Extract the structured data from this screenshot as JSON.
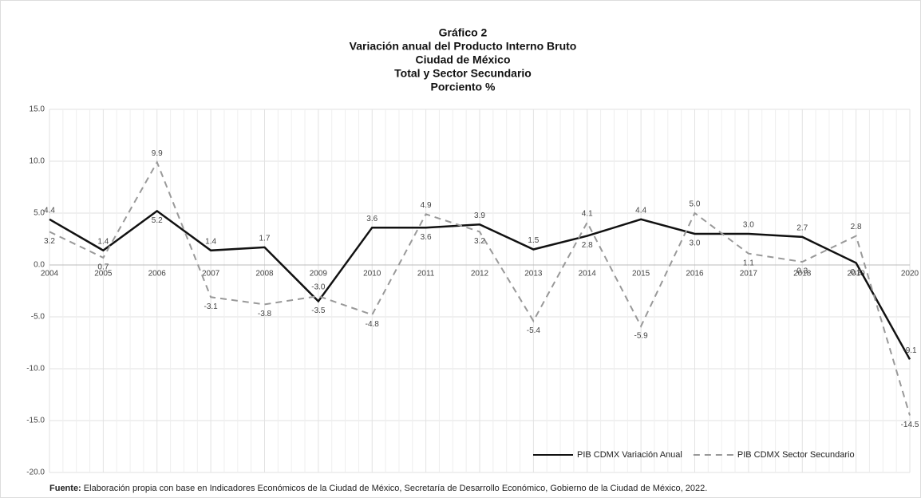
{
  "chart_data": {
    "type": "line",
    "title": [
      "Gráfico 2",
      "Variación anual del Producto Interno Bruto",
      "Ciudad de México",
      "Total y Sector Secundario",
      "Porciento %"
    ],
    "categories": [
      "2004",
      "2005",
      "2006",
      "2007",
      "2008",
      "2009",
      "2010",
      "2011",
      "2012",
      "2013",
      "2014",
      "2015",
      "2016",
      "2017",
      "2018",
      "2019",
      "2020"
    ],
    "series": [
      {
        "name": "PIB CDMX Variación Anual",
        "color": "#111111",
        "dash": false,
        "values": [
          4.4,
          1.4,
          5.2,
          1.4,
          1.7,
          -3.5,
          3.6,
          3.6,
          3.9,
          1.5,
          2.8,
          4.4,
          3.0,
          3.0,
          2.7,
          0.2,
          -9.1
        ],
        "value_labels": [
          "4.4",
          "1.4",
          "5.2",
          "1.4",
          "1.7",
          "-3.5",
          "3.6",
          "3.6",
          "3.9",
          "1.5",
          "2.8",
          "4.4",
          "3.0",
          "3.0",
          "2.7",
          "0.2",
          "-9.1"
        ]
      },
      {
        "name": "PIB CDMX Sector Secundario",
        "color": "#999999",
        "dash": true,
        "values": [
          3.2,
          0.7,
          9.9,
          -3.1,
          -3.8,
          -3.0,
          -4.8,
          4.9,
          3.2,
          -5.4,
          4.1,
          -5.9,
          5.0,
          1.1,
          0.3,
          2.8,
          -14.5
        ],
        "value_labels": [
          "3.2",
          "0.7",
          "9.9",
          "-3.1",
          "-3.8",
          "-3.0",
          "-4.8",
          "4.9",
          "3.2",
          "-5.4",
          "4.1",
          "-5.9",
          "5.0",
          "1.1",
          "0.3",
          "2.8",
          "-14.5"
        ]
      }
    ],
    "ylim": [
      -20,
      15
    ],
    "yticks": [
      {
        "value": 15,
        "label": "15.0"
      },
      {
        "value": 10,
        "label": "10.0"
      },
      {
        "value": 5,
        "label": "5.0"
      },
      {
        "value": 0,
        "label": "0.0"
      },
      {
        "value": -5,
        "label": "-5.0"
      },
      {
        "value": -10,
        "label": "-10.0"
      },
      {
        "value": -15,
        "label": "-15.0"
      },
      {
        "value": -20,
        "label": "-20.0"
      }
    ],
    "grid": true,
    "legend": "bottom-right",
    "source_label": "Fuente:",
    "source_text": "Elaboración propia con base en Indicadores Económicos de la Ciudad de México, Secretaría de Desarrollo Económico, Gobierno de la Ciudad de México, 2022."
  }
}
